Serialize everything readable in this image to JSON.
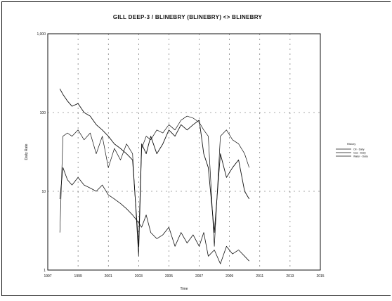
{
  "chart_data": {
    "type": "line",
    "title": "GILL DEEP-3 / BLINEBRY (BLINEBRY) <> BLINEBRY",
    "xlabel": "Time",
    "ylabel": "Daily Rate",
    "y_scale": "log",
    "ylim": [
      1,
      1000
    ],
    "xlim": [
      1997,
      2015
    ],
    "x_ticks": [
      "1997",
      "1999",
      "2001",
      "2003",
      "2005",
      "2007",
      "2009",
      "2011",
      "2013",
      "2015"
    ],
    "y_ticks": [
      "1,000",
      "100",
      "10",
      "1"
    ],
    "grid": true,
    "legend": {
      "placement": "right",
      "title": "History",
      "entries": [
        "Oil - Daily",
        "Gas - Daily",
        "Water - Daily"
      ]
    },
    "series": [
      {
        "name": "Oil - Daily",
        "x": [
          1997.8,
          1998.0,
          1998.3,
          1998.6,
          1999.0,
          1999.4,
          1999.8,
          2000.2,
          2000.6,
          2001.0,
          2001.4,
          2001.8,
          2002.2,
          2002.6,
          2003.0,
          2003.2,
          2003.5,
          2003.8,
          2004.2,
          2004.6,
          2005.0,
          2005.4,
          2005.8,
          2006.2,
          2006.6,
          2007.0,
          2007.3,
          2007.6,
          2008.0,
          2008.4,
          2008.8,
          2009.2,
          2009.6,
          2010.0,
          2010.3
        ],
        "values": [
          8,
          20,
          14,
          12,
          15,
          12,
          11,
          10,
          12,
          9,
          8,
          7,
          6,
          5,
          4,
          3.5,
          5,
          3,
          2.5,
          2.8,
          3.5,
          2,
          3,
          2.2,
          2.8,
          2,
          3,
          1.5,
          1.8,
          1.2,
          2,
          1.6,
          1.8,
          1.5,
          1.3
        ]
      },
      {
        "name": "Gas - Daily",
        "x": [
          1997.8,
          1998.0,
          1998.3,
          1998.6,
          1999.0,
          1999.4,
          1999.8,
          2000.2,
          2000.6,
          2001.0,
          2001.4,
          2001.8,
          2002.2,
          2002.6,
          2003.0,
          2003.2,
          2003.5,
          2003.8,
          2004.2,
          2004.6,
          2005.0,
          2005.4,
          2005.8,
          2006.2,
          2006.6,
          2007.0,
          2007.3,
          2007.6,
          2008.0,
          2008.4,
          2008.8,
          2009.2,
          2009.6,
          2010.0,
          2010.3
        ],
        "values": [
          200,
          170,
          140,
          120,
          130,
          100,
          90,
          70,
          60,
          50,
          40,
          35,
          30,
          25,
          2,
          40,
          30,
          50,
          30,
          40,
          60,
          50,
          70,
          60,
          70,
          80,
          30,
          20,
          3,
          30,
          15,
          20,
          25,
          10,
          8
        ]
      },
      {
        "name": "Water - Daily",
        "x": [
          1997.8,
          1998.0,
          1998.3,
          1998.6,
          1999.0,
          1999.4,
          1999.8,
          2000.2,
          2000.6,
          2001.0,
          2001.4,
          2001.8,
          2002.2,
          2002.6,
          2003.0,
          2003.2,
          2003.5,
          2003.8,
          2004.2,
          2004.6,
          2005.0,
          2005.4,
          2005.8,
          2006.2,
          2006.6,
          2007.0,
          2007.3,
          2007.6,
          2008.0,
          2008.4,
          2008.8,
          2009.2,
          2009.6,
          2010.0,
          2010.3
        ],
        "values": [
          3,
          50,
          55,
          50,
          60,
          45,
          55,
          30,
          50,
          20,
          35,
          25,
          40,
          30,
          1.5,
          35,
          50,
          45,
          60,
          55,
          70,
          60,
          80,
          90,
          85,
          75,
          60,
          50,
          2,
          50,
          60,
          45,
          40,
          30,
          20
        ]
      }
    ]
  }
}
